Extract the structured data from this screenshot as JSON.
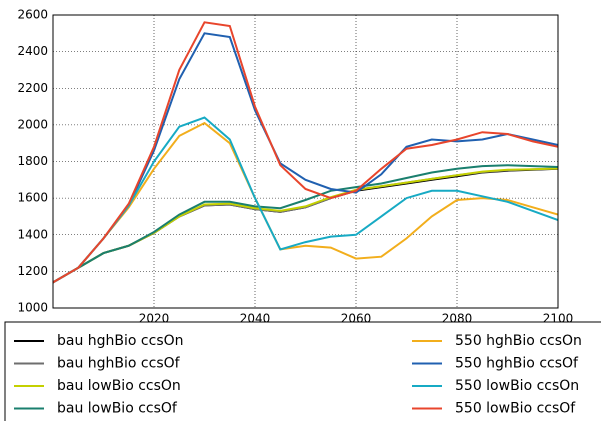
{
  "chart_data": {
    "type": "line",
    "x": [
      2000,
      2005,
      2010,
      2015,
      2020,
      2025,
      2030,
      2035,
      2040,
      2045,
      2050,
      2055,
      2060,
      2065,
      2070,
      2075,
      2080,
      2085,
      2090,
      2095,
      2100
    ],
    "xlim": [
      2000,
      2100
    ],
    "xticks": [
      2020,
      2040,
      2060,
      2080,
      2100
    ],
    "ylim": [
      1000,
      2600
    ],
    "yticks": [
      1000,
      1200,
      1400,
      1600,
      1800,
      2000,
      2200,
      2400,
      2600
    ],
    "grid": true,
    "series": [
      {
        "name": "bau hghBio ccsOn",
        "color": "#000000",
        "values": [
          1140,
          1220,
          1300,
          1340,
          1410,
          1500,
          1560,
          1565,
          1540,
          1525,
          1550,
          1600,
          1640,
          1660,
          1680,
          1700,
          1720,
          1740,
          1750,
          1755,
          1760
        ]
      },
      {
        "name": "bau hghBio ccsOf",
        "color": "#6e6e6e",
        "values": [
          1140,
          1220,
          1300,
          1340,
          1410,
          1500,
          1560,
          1565,
          1540,
          1525,
          1550,
          1600,
          1645,
          1665,
          1685,
          1705,
          1725,
          1742,
          1752,
          1757,
          1762
        ]
      },
      {
        "name": "bau lowBio ccsOn",
        "color": "#c4d000",
        "values": [
          1140,
          1220,
          1300,
          1340,
          1410,
          1500,
          1565,
          1570,
          1545,
          1530,
          1555,
          1605,
          1645,
          1665,
          1685,
          1705,
          1725,
          1745,
          1755,
          1758,
          1762
        ]
      },
      {
        "name": "bau lowBio ccsOf",
        "color": "#1a7f6e",
        "values": [
          1140,
          1220,
          1300,
          1340,
          1415,
          1510,
          1580,
          1580,
          1555,
          1545,
          1590,
          1640,
          1660,
          1680,
          1710,
          1740,
          1760,
          1775,
          1780,
          1775,
          1770
        ]
      },
      {
        "name": "550 hghBio ccsOn",
        "color": "#f2ae1c",
        "values": [
          1140,
          1220,
          1380,
          1550,
          1760,
          1940,
          2010,
          1900,
          1600,
          1320,
          1340,
          1330,
          1270,
          1280,
          1380,
          1500,
          1590,
          1600,
          1590,
          1550,
          1510
        ]
      },
      {
        "name": "550 hghBio ccsOf",
        "color": "#2060b0",
        "values": [
          1140,
          1220,
          1380,
          1560,
          1860,
          2250,
          2500,
          2480,
          2080,
          1790,
          1700,
          1650,
          1630,
          1730,
          1880,
          1920,
          1910,
          1920,
          1950,
          1920,
          1890
        ]
      },
      {
        "name": "550 lowBio ccsOn",
        "color": "#17aac4",
        "values": [
          1140,
          1220,
          1380,
          1560,
          1800,
          1990,
          2040,
          1920,
          1600,
          1320,
          1360,
          1390,
          1400,
          1500,
          1600,
          1640,
          1640,
          1610,
          1580,
          1530,
          1480
        ]
      },
      {
        "name": "550 lowBio ccsOf",
        "color": "#e8452c",
        "values": [
          1140,
          1220,
          1380,
          1570,
          1880,
          2300,
          2560,
          2540,
          2100,
          1780,
          1650,
          1600,
          1640,
          1760,
          1870,
          1890,
          1920,
          1960,
          1950,
          1910,
          1880
        ]
      }
    ]
  }
}
